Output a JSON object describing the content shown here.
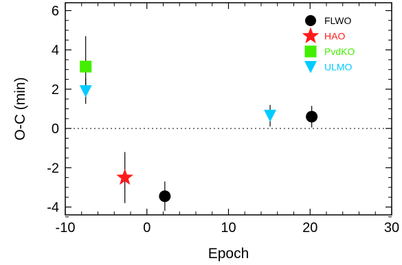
{
  "chart_data": {
    "type": "scatter",
    "xlabel": "Epoch",
    "ylabel": "O-C (min)",
    "xlim": [
      -10,
      30
    ],
    "ylim": [
      -4.4,
      6.4
    ],
    "x_ticks": [
      -10,
      0,
      10,
      20,
      30
    ],
    "y_ticks": [
      -4,
      -2,
      0,
      2,
      4,
      6
    ],
    "reference_line": {
      "y": 0,
      "style": "dotted"
    },
    "legend_position": "top-right",
    "series": [
      {
        "name": "FLWO",
        "marker": "circle",
        "color": "#000000",
        "points": [
          {
            "x": 2.2,
            "y": -3.45,
            "err": 0.75
          },
          {
            "x": 20.2,
            "y": 0.6,
            "err": 0.55
          }
        ]
      },
      {
        "name": "HAO",
        "marker": "star",
        "color": "#ff1a1a",
        "points": [
          {
            "x": -2.7,
            "y": -2.5,
            "err": 1.3
          }
        ]
      },
      {
        "name": "PvdKO",
        "marker": "square",
        "color": "#44ee00",
        "points": [
          {
            "x": -7.5,
            "y": 3.15,
            "err": 1.55
          }
        ]
      },
      {
        "name": "ULMO",
        "marker": "triangle-down",
        "color": "#00ccff",
        "points": [
          {
            "x": -7.5,
            "y": 1.9,
            "err": 0.65
          },
          {
            "x": 15.1,
            "y": 0.65,
            "err": 0.55
          }
        ]
      }
    ]
  }
}
